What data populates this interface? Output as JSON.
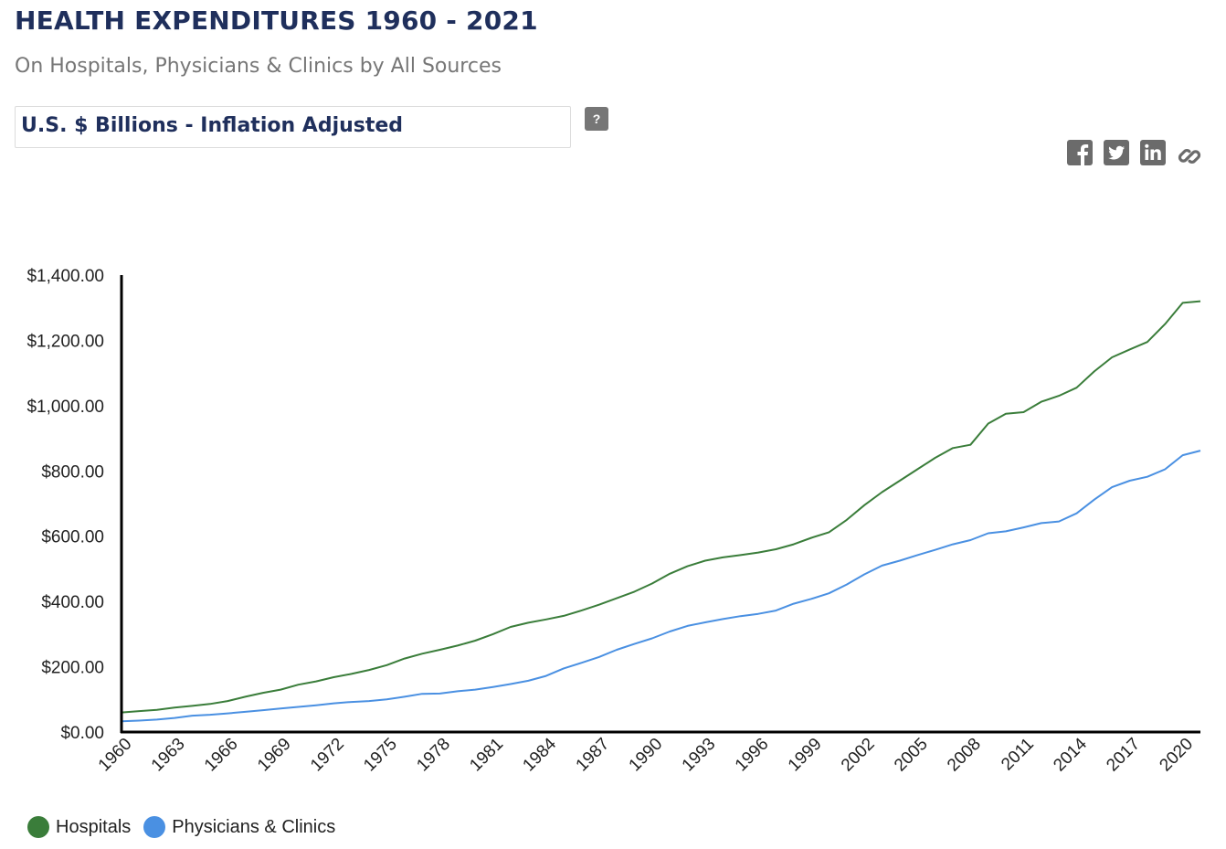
{
  "header": {
    "title": "HEALTH EXPENDITURES 1960 - 2021",
    "subtitle": "On Hospitals, Physicians & Clinics by All Sources",
    "measure_select": "U.S. $ Billions - Inflation Adjusted",
    "help_label": "?"
  },
  "share": {
    "icons": [
      "facebook-icon",
      "twitter-icon",
      "linkedin-icon",
      "link-icon"
    ],
    "color": "#6b6b6b"
  },
  "chart_data": {
    "type": "line",
    "title": "",
    "xlabel": "",
    "ylabel": "",
    "x": [
      1960,
      1961,
      1962,
      1963,
      1964,
      1965,
      1966,
      1967,
      1968,
      1969,
      1970,
      1971,
      1972,
      1973,
      1974,
      1975,
      1976,
      1977,
      1978,
      1979,
      1980,
      1981,
      1982,
      1983,
      1984,
      1985,
      1986,
      1987,
      1988,
      1989,
      1990,
      1991,
      1992,
      1993,
      1994,
      1995,
      1996,
      1997,
      1998,
      1999,
      2000,
      2001,
      2002,
      2003,
      2004,
      2005,
      2006,
      2007,
      2008,
      2009,
      2010,
      2011,
      2012,
      2013,
      2014,
      2015,
      2016,
      2017,
      2018,
      2019,
      2020,
      2021
    ],
    "x_tick_labels": [
      "1960",
      "1963",
      "1966",
      "1969",
      "1972",
      "1975",
      "1978",
      "1981",
      "1984",
      "1987",
      "1990",
      "1993",
      "1996",
      "1999",
      "2002",
      "2005",
      "2008",
      "2011",
      "2014",
      "2017",
      "2020"
    ],
    "ylim": [
      0,
      1400
    ],
    "y_tick_labels": [
      "$0.00",
      "$200.00",
      "$400.00",
      "$600.00",
      "$800.00",
      "$1,000.00",
      "$1,200.00",
      "$1,400.00"
    ],
    "grid": false,
    "legend_position": "bottom-left",
    "series": [
      {
        "name": "Hospitals",
        "color": "#3a7d3a",
        "values": [
          60,
          64,
          68,
          75,
          80,
          86,
          95,
          108,
          120,
          130,
          145,
          155,
          168,
          178,
          190,
          205,
          225,
          240,
          252,
          265,
          280,
          300,
          322,
          335,
          345,
          356,
          372,
          390,
          410,
          430,
          455,
          485,
          508,
          525,
          535,
          542,
          550,
          560,
          575,
          595,
          612,
          650,
          695,
          735,
          770,
          805,
          840,
          870,
          880,
          945,
          975,
          980,
          1012,
          1030,
          1055,
          1105,
          1148,
          1172,
          1195,
          1250,
          1315,
          1320
        ]
      },
      {
        "name": "Physicians & Clinics",
        "color": "#4a90e2",
        "values": [
          33,
          35,
          38,
          43,
          50,
          53,
          57,
          62,
          67,
          72,
          77,
          82,
          88,
          92,
          95,
          100,
          108,
          117,
          118,
          125,
          130,
          138,
          147,
          157,
          172,
          195,
          212,
          230,
          252,
          270,
          287,
          308,
          325,
          336,
          346,
          355,
          362,
          372,
          393,
          408,
          425,
          452,
          483,
          510,
          525,
          542,
          558,
          575,
          588,
          609,
          615,
          627,
          640,
          645,
          670,
          712,
          750,
          770,
          782,
          805,
          848,
          862
        ]
      }
    ]
  }
}
